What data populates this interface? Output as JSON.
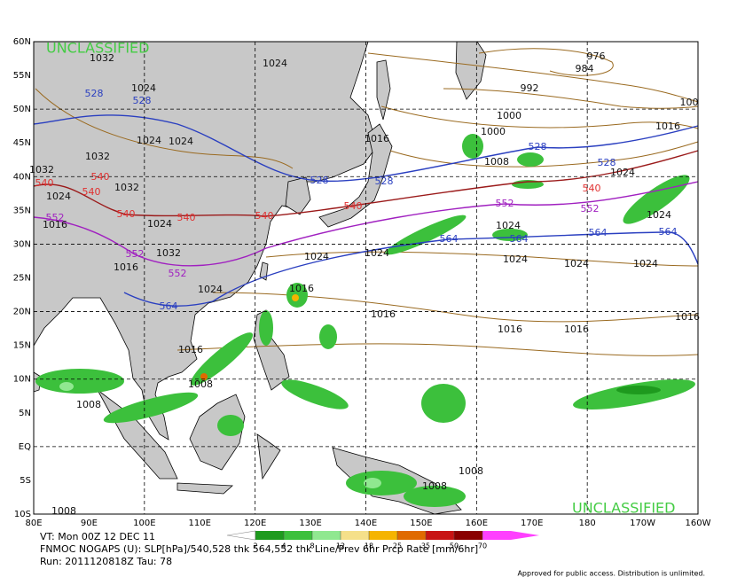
{
  "map": {
    "classification_top": "UNCLASSIFIED",
    "classification_bottom": "UNCLASSIFIED",
    "lat_labels": [
      "60N",
      "55N",
      "50N",
      "45N",
      "40N",
      "35N",
      "30N",
      "25N",
      "20N",
      "15N",
      "10N",
      "5N",
      "EQ",
      "5S",
      "10S"
    ],
    "lon_labels": [
      "80E",
      "90E",
      "100E",
      "110E",
      "120E",
      "130E",
      "140E",
      "150E",
      "160E",
      "170E",
      "180",
      "170W",
      "160W"
    ],
    "slp_labels": [
      1032,
      1024,
      1024,
      976,
      984,
      992,
      1000,
      1000,
      100,
      1016,
      1016,
      1024,
      1024,
      1032,
      1008,
      1032,
      1024,
      1024,
      1032,
      1016,
      1024,
      1024,
      1024,
      1032,
      1024,
      1024,
      1024,
      1024,
      1024,
      1016,
      1024,
      1016,
      1016,
      1016,
      1016,
      1016,
      1016,
      1008,
      1008,
      1008,
      1008,
      1008
    ],
    "thickness_labels": [
      {
        "text": 528,
        "color": "#2a3fc0"
      },
      {
        "text": 528,
        "color": "#2a3fc0"
      },
      {
        "text": 528,
        "color": "#2a3fc0"
      },
      {
        "text": 528,
        "color": "#2a3fc0"
      },
      {
        "text": 528,
        "color": "#2a3fc0"
      },
      {
        "text": 528,
        "color": "#2a3fc0"
      },
      {
        "text": 540,
        "color": "#e03030"
      },
      {
        "text": 540,
        "color": "#e03030"
      },
      {
        "text": 540,
        "color": "#e03030"
      },
      {
        "text": 540,
        "color": "#e03030"
      },
      {
        "text": 540,
        "color": "#e03030"
      },
      {
        "text": 540,
        "color": "#e03030"
      },
      {
        "text": 540,
        "color": "#e03030"
      },
      {
        "text": 540,
        "color": "#e03030"
      },
      {
        "text": 552,
        "color": "#a020c0"
      },
      {
        "text": 552,
        "color": "#a020c0"
      },
      {
        "text": 552,
        "color": "#a020c0"
      },
      {
        "text": 552,
        "color": "#a020c0"
      },
      {
        "text": 552,
        "color": "#a020c0"
      },
      {
        "text": 564,
        "color": "#2a3fc0"
      },
      {
        "text": 564,
        "color": "#2a3fc0"
      },
      {
        "text": 564,
        "color": "#2a3fc0"
      },
      {
        "text": 564,
        "color": "#2a3fc0"
      },
      {
        "text": 564,
        "color": "#2a3fc0"
      }
    ]
  },
  "legend": {
    "ticks": [
      2,
      4,
      8,
      12,
      18,
      25,
      35,
      50,
      70
    ],
    "colors": [
      "#ffffff",
      "#1e9a1e",
      "#3cc03c",
      "#90e890",
      "#f5e08a",
      "#f5b400",
      "#e06a00",
      "#c81414",
      "#8a0000",
      "#ff40ff"
    ]
  },
  "footer": {
    "valid_time": "VT: Mon 00Z 12 DEC 11",
    "description": "FNMOC NOGAPS (U): SLP[hPa]/540,528 thk 564,552 thk Line/Prev 6hr Prcp Rate [mm/6hr]",
    "run": "Run: 2011120818Z Tau: 78",
    "disclaimer": "Approved for public access. Distribution is unlimited."
  }
}
